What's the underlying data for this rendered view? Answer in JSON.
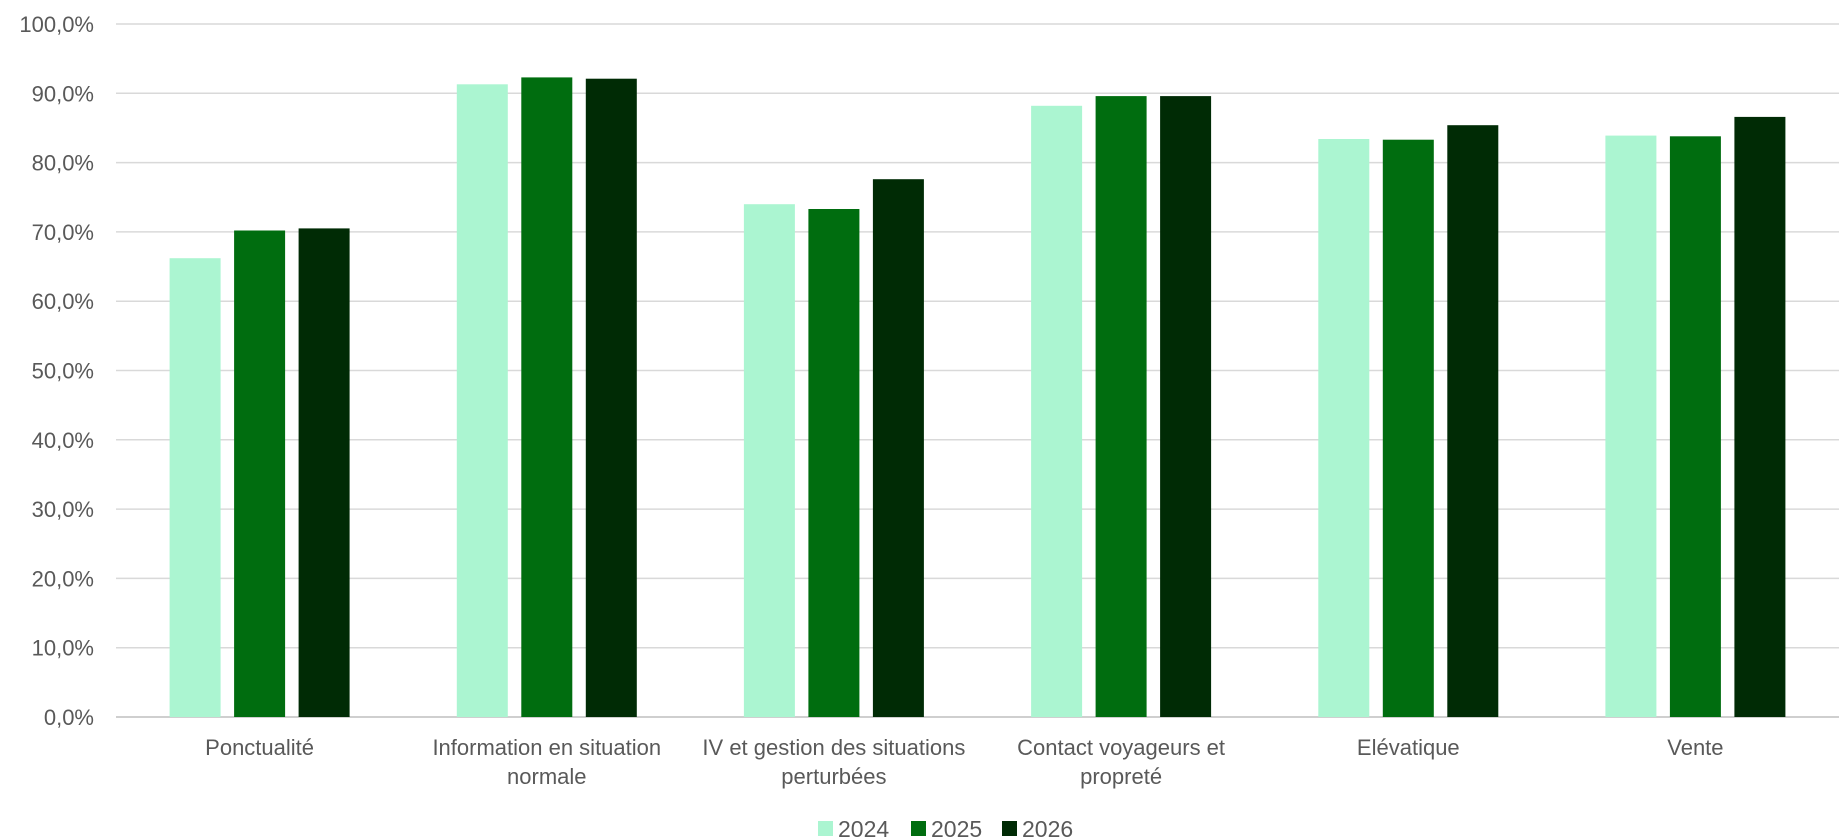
{
  "chart_data": {
    "type": "bar",
    "categories": [
      [
        "Ponctualité"
      ],
      [
        "Information en situation",
        "normale"
      ],
      [
        "IV et gestion des situations",
        "perturbées"
      ],
      [
        "Contact voyageurs et",
        "propreté"
      ],
      [
        "Elévatique"
      ],
      [
        "Vente"
      ]
    ],
    "series": [
      {
        "name": "2024",
        "color": "#abf5d1",
        "values": [
          66.2,
          91.3,
          74.0,
          88.2,
          83.4,
          83.9
        ]
      },
      {
        "name": "2025",
        "color": "#006d0f",
        "values": [
          70.2,
          92.3,
          73.3,
          89.6,
          83.3,
          83.8
        ]
      },
      {
        "name": "2026",
        "color": "#002b05",
        "values": [
          70.5,
          92.1,
          77.6,
          89.6,
          85.4,
          86.6
        ]
      }
    ],
    "yticks": [
      "0,0%",
      "10,0%",
      "20,0%",
      "30,0%",
      "40,0%",
      "50,0%",
      "60,0%",
      "70,0%",
      "80,0%",
      "90,0%",
      "100,0%"
    ],
    "ylim": [
      0,
      100
    ],
    "grid": true,
    "legend_position": "bottom-center",
    "title": "",
    "xlabel": "",
    "ylabel": ""
  }
}
